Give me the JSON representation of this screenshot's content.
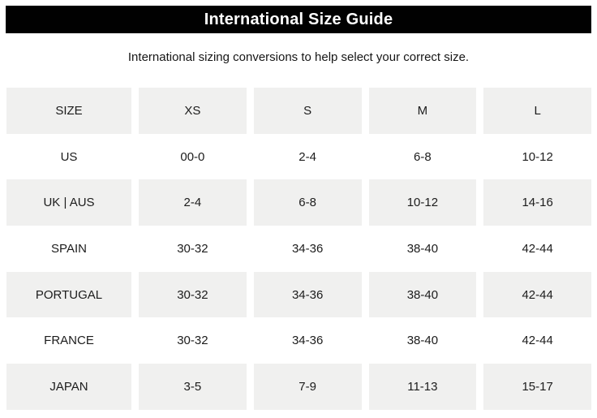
{
  "header": {
    "title": "International Size Guide"
  },
  "subtitle": "International sizing conversions to help select your correct size.",
  "colors": {
    "banner_bg": "#010101",
    "banner_text": "#ffffff",
    "row_shade": "#f0f0ef",
    "text": "#1c1c1c",
    "page_bg": "#ffffff"
  },
  "table": {
    "columns": [
      "SIZE",
      "XS",
      "S",
      "M",
      "L"
    ],
    "rows": [
      {
        "label": "US",
        "values": [
          "00-0",
          "2-4",
          "6-8",
          "10-12"
        ]
      },
      {
        "label": "UK | AUS",
        "values": [
          "2-4",
          "6-8",
          "10-12",
          "14-16"
        ]
      },
      {
        "label": "SPAIN",
        "values": [
          "30-32",
          "34-36",
          "38-40",
          "42-44"
        ]
      },
      {
        "label": "PORTUGAL",
        "values": [
          "30-32",
          "34-36",
          "38-40",
          "42-44"
        ]
      },
      {
        "label": "FRANCE",
        "values": [
          "30-32",
          "34-36",
          "38-40",
          "42-44"
        ]
      },
      {
        "label": "JAPAN",
        "values": [
          "3-5",
          "7-9",
          "11-13",
          "15-17"
        ]
      }
    ]
  }
}
